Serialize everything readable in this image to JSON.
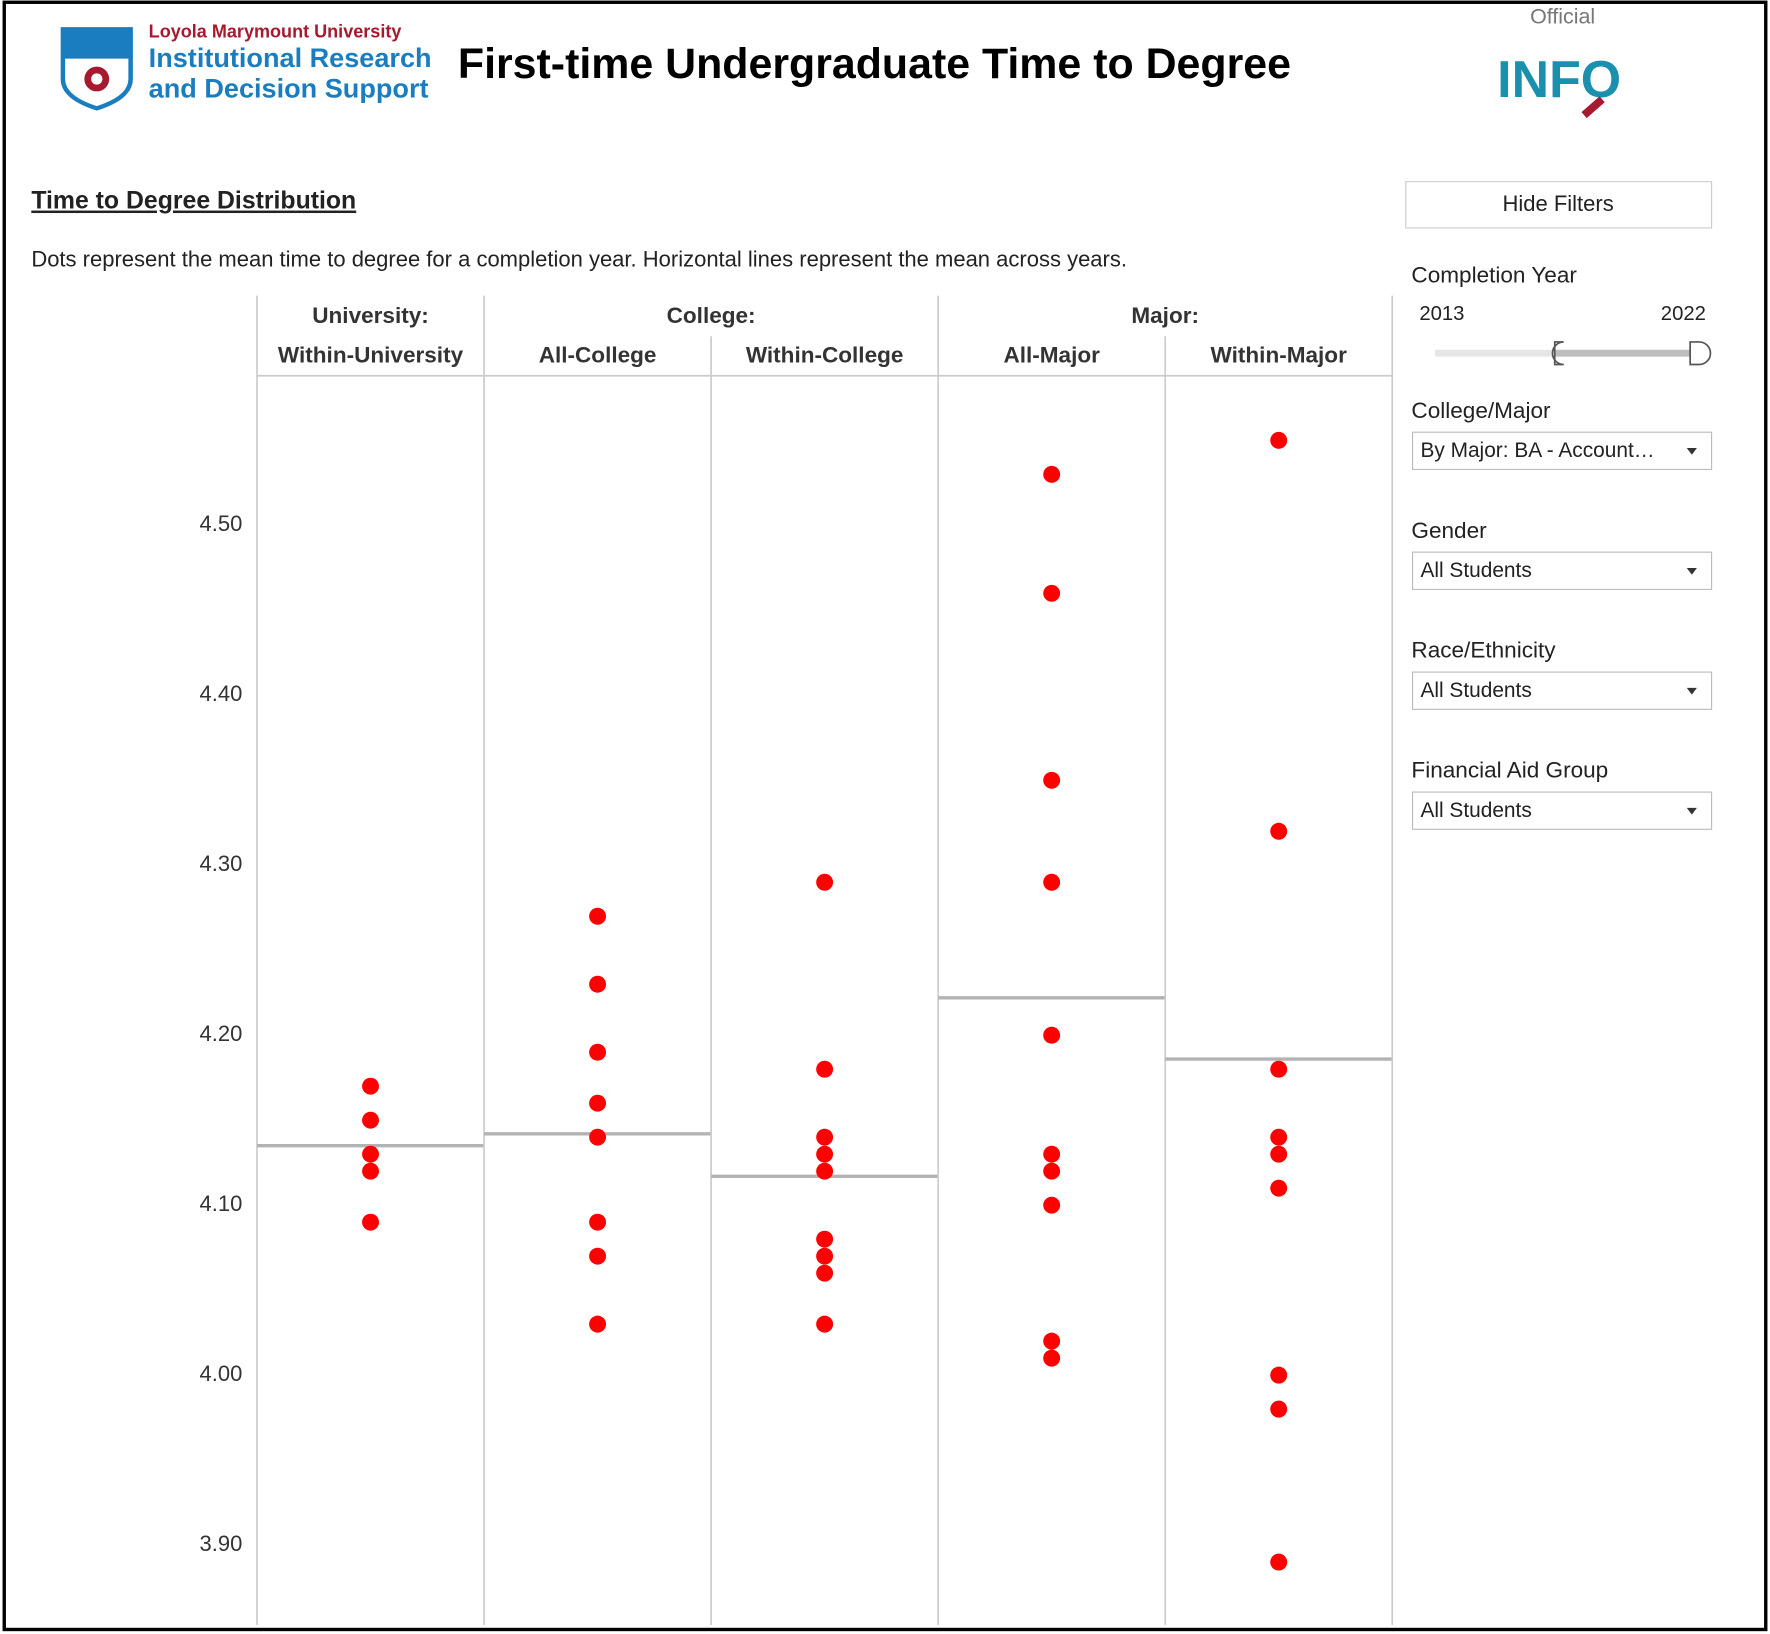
{
  "header": {
    "university": "Loyola Marymount University",
    "department_line1": "Institutional Research",
    "department_line2": "and Decision Support",
    "title": "First-time Undergraduate Time to Degree",
    "badge_top": "Official",
    "badge": "INFO"
  },
  "section": {
    "title": "Time to Degree Distribution",
    "description": "Dots represent the mean time to degree for a completion year. Horizontal lines represent the mean across years."
  },
  "filters": {
    "toggle": "Hide Filters",
    "completion_year": {
      "label": "Completion Year",
      "start": "2013",
      "end": "2022"
    },
    "dropdowns": [
      {
        "label": "College/Major",
        "value": "By Major: BA - Account…"
      },
      {
        "label": "Gender",
        "value": "All Students"
      },
      {
        "label": "Race/Ethnicity",
        "value": "All Students"
      },
      {
        "label": "Financial Aid Group",
        "value": "All Students"
      }
    ]
  },
  "chart_data": {
    "type": "strip",
    "color": "#ff0000",
    "mean_line_color": "#b3b3b3",
    "ylim": [
      3.853,
      4.588
    ],
    "yticks": [
      {
        "value": 3.9,
        "label": "3.90"
      },
      {
        "value": 4.0,
        "label": "4.00"
      },
      {
        "value": 4.1,
        "label": "4.10"
      },
      {
        "value": 4.2,
        "label": "4.20"
      },
      {
        "value": 4.3,
        "label": "4.30"
      },
      {
        "value": 4.4,
        "label": "4.40"
      },
      {
        "value": 4.5,
        "label": "4.50"
      }
    ],
    "groups": [
      {
        "name": "University:",
        "series": [
          {
            "name": "Within-University",
            "values": [
              4.17,
              4.15,
              4.13,
              4.12,
              4.09
            ],
            "mean": 4.135
          }
        ]
      },
      {
        "name": "College:",
        "series": [
          {
            "name": "All-College",
            "values": [
              4.27,
              4.23,
              4.19,
              4.16,
              4.14,
              4.09,
              4.07,
              4.03
            ],
            "mean": 4.142
          },
          {
            "name": "Within-College",
            "values": [
              4.29,
              4.18,
              4.14,
              4.13,
              4.12,
              4.08,
              4.07,
              4.06,
              4.03
            ],
            "mean": 4.117
          }
        ]
      },
      {
        "name": "Major:",
        "series": [
          {
            "name": "All-Major",
            "values": [
              4.53,
              4.46,
              4.35,
              4.29,
              4.2,
              4.13,
              4.12,
              4.1,
              4.02,
              4.01
            ],
            "mean": 4.222
          },
          {
            "name": "Within-Major",
            "values": [
              4.55,
              4.32,
              4.18,
              4.14,
              4.13,
              4.11,
              4.0,
              3.98,
              3.89
            ],
            "mean": 4.186
          }
        ]
      }
    ]
  }
}
